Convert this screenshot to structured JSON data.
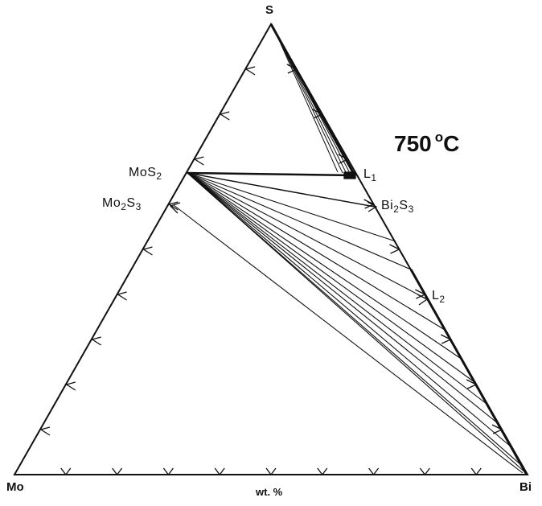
{
  "vertices": {
    "top": "S",
    "left": "Mo",
    "right": "Bi"
  },
  "temperature": {
    "value": "750",
    "unit_sup": "o",
    "unit": "C"
  },
  "axis_label": "wt. %",
  "phases": {
    "mos2": {
      "a": "MoS",
      "sub1": "2",
      "b": "",
      "sub2": ""
    },
    "mo2s3": {
      "a": "Mo",
      "sub1": "2",
      "b": "S",
      "sub2": "3"
    },
    "bi2s3": {
      "a": "Bi",
      "sub1": "2",
      "b": "S",
      "sub2": "3"
    },
    "l1": {
      "a": "L",
      "sub1": "1",
      "b": "",
      "sub2": ""
    },
    "l2": {
      "a": "L",
      "sub1": "2",
      "b": "",
      "sub2": ""
    }
  },
  "colors": {
    "line": "#111111",
    "background": "#ffffff"
  }
}
